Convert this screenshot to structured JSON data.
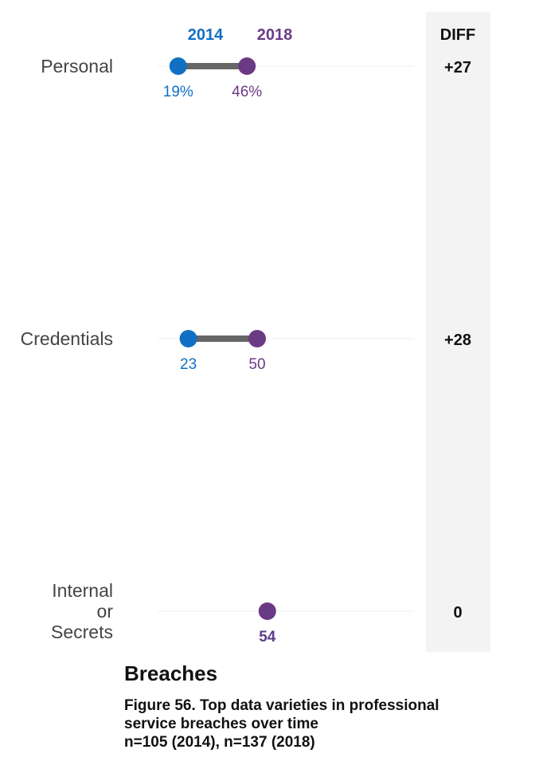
{
  "chart_data": {
    "type": "dumbbell",
    "series": [
      {
        "name": "2014",
        "color": "#1170c4"
      },
      {
        "name": "2018",
        "color": "#6b3a85"
      }
    ],
    "diff_header": "DIFF",
    "categories": [
      {
        "label_lines": [
          "Personal"
        ],
        "v2014": 19,
        "v2018": 46,
        "label2014": "19%",
        "label2018": "46%",
        "diff": "+27"
      },
      {
        "label_lines": [
          "Credentials"
        ],
        "v2014": 23,
        "v2018": 50,
        "label2014": "23",
        "label2018": "50",
        "diff": "+28"
      },
      {
        "label_lines": [
          "Internal",
          "or",
          "Secrets"
        ],
        "v2014": null,
        "v2018": 54,
        "label2014": null,
        "label2018": "54",
        "diff": "0"
      }
    ],
    "xlim": [
      0,
      100
    ]
  },
  "caption": {
    "title": "Breaches",
    "figure_line1": "Figure 56. Top data varieties in professional",
    "figure_line2": "service breaches over time",
    "figure_line3": "n=105 (2014), n=137 (2018)"
  }
}
